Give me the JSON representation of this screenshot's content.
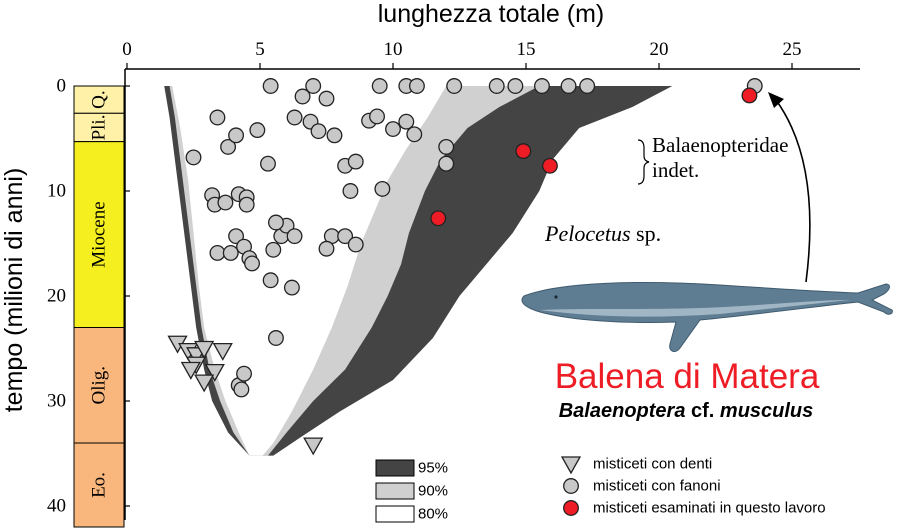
{
  "chart_data": {
    "type": "scatter",
    "title": "",
    "xlabel": "lunghezza totale (m)",
    "ylabel": "tempo (milioni di anni)",
    "xlim": [
      0,
      27
    ],
    "ylim": [
      0,
      42
    ],
    "x_ticks": [
      "0",
      "5",
      "10",
      "15",
      "20",
      "25"
    ],
    "y_ticks": [
      "0",
      "10",
      "20",
      "30",
      "40"
    ],
    "epochs": [
      {
        "label": "Q.",
        "from": 0,
        "to": 2.6,
        "color": "#fff2a8"
      },
      {
        "label": "Pli.",
        "from": 2.6,
        "to": 5.3,
        "color": "#fff2a8"
      },
      {
        "label": "Miocene",
        "from": 5.3,
        "to": 23,
        "color": "#f5ef1f"
      },
      {
        "label": "Olig.",
        "from": 23,
        "to": 34,
        "color": "#f9b77e"
      },
      {
        "label": "Eo.",
        "from": 34,
        "to": 42,
        "color": "#f9b77e"
      }
    ],
    "bands": [
      {
        "name": "95%",
        "color": "#444444",
        "left": [
          [
            1.4,
            0
          ],
          [
            1.6,
            3
          ],
          [
            1.8,
            7
          ],
          [
            2.0,
            11
          ],
          [
            2.2,
            15
          ],
          [
            2.4,
            19
          ],
          [
            2.6,
            23
          ],
          [
            2.9,
            27
          ],
          [
            3.2,
            30
          ],
          [
            3.8,
            33
          ],
          [
            4.6,
            35.2
          ]
        ],
        "right": [
          [
            20.5,
            0
          ],
          [
            19,
            2
          ],
          [
            17,
            4
          ],
          [
            16,
            7
          ],
          [
            15.5,
            10
          ],
          [
            14.5,
            14
          ],
          [
            13.5,
            17
          ],
          [
            12.5,
            20
          ],
          [
            11.5,
            24
          ],
          [
            10,
            28
          ],
          [
            8,
            31
          ],
          [
            6.5,
            33.5
          ],
          [
            5.5,
            35.2
          ]
        ]
      },
      {
        "name": "90%",
        "color": "#d0d0d0",
        "left": [
          [
            1.6,
            0
          ],
          [
            1.8,
            3
          ],
          [
            2.0,
            7
          ],
          [
            2.2,
            11
          ],
          [
            2.4,
            15
          ],
          [
            2.6,
            19
          ],
          [
            2.8,
            23
          ],
          [
            3.1,
            27
          ],
          [
            3.5,
            30
          ],
          [
            4.0,
            33
          ],
          [
            4.6,
            35.2
          ]
        ],
        "right": [
          [
            15.5,
            0
          ],
          [
            14,
            2
          ],
          [
            12.8,
            4
          ],
          [
            11.8,
            7
          ],
          [
            11.2,
            10
          ],
          [
            10.6,
            14
          ],
          [
            10.3,
            17
          ],
          [
            9.8,
            20
          ],
          [
            9.2,
            23
          ],
          [
            8.2,
            27
          ],
          [
            7,
            30
          ],
          [
            6,
            33
          ],
          [
            5.3,
            35.2
          ]
        ]
      },
      {
        "name": "80%",
        "color": "#ffffff",
        "left": [
          [
            1.7,
            0
          ],
          [
            2.0,
            4
          ],
          [
            2.3,
            9
          ],
          [
            2.5,
            14
          ],
          [
            2.7,
            19
          ],
          [
            2.9,
            23
          ],
          [
            3.3,
            27
          ],
          [
            3.7,
            30
          ],
          [
            4.2,
            33
          ],
          [
            4.6,
            35.2
          ]
        ],
        "right": [
          [
            12,
            0
          ],
          [
            11.3,
            3
          ],
          [
            10.5,
            6
          ],
          [
            9.8,
            9
          ],
          [
            9.3,
            12
          ],
          [
            8.8,
            15
          ],
          [
            8.3,
            19
          ],
          [
            7.7,
            23
          ],
          [
            7,
            27
          ],
          [
            6.2,
            31
          ],
          [
            5.5,
            34
          ],
          [
            5.1,
            35.2
          ]
        ]
      }
    ],
    "series": [
      {
        "name": "misticeti con denti",
        "marker": "triangle",
        "color": "#c8c8c8",
        "points": [
          [
            1.9,
            24.5
          ],
          [
            2.3,
            25.2
          ],
          [
            2.6,
            25.6
          ],
          [
            2.9,
            25.0
          ],
          [
            3.6,
            25.2
          ],
          [
            2.6,
            26.5
          ],
          [
            3.3,
            27.2
          ],
          [
            2.4,
            27.0
          ],
          [
            2.9,
            28.2
          ],
          [
            7.0,
            34.2
          ]
        ]
      },
      {
        "name": "misticeti con fanoni",
        "marker": "circle",
        "color": "#c8c8c8",
        "points": [
          [
            5.4,
            0
          ],
          [
            7.0,
            0
          ],
          [
            9.5,
            0
          ],
          [
            10.5,
            0
          ],
          [
            10.9,
            0
          ],
          [
            12.3,
            0
          ],
          [
            13.9,
            0
          ],
          [
            14.6,
            0
          ],
          [
            15.6,
            0
          ],
          [
            16.6,
            0
          ],
          [
            17.3,
            0
          ],
          [
            23.6,
            0
          ],
          [
            6.6,
            1.0
          ],
          [
            7.5,
            1.2
          ],
          [
            2.5,
            6.8
          ],
          [
            3.4,
            3.0
          ],
          [
            3.8,
            5.8
          ],
          [
            4.1,
            4.7
          ],
          [
            4.9,
            4.2
          ],
          [
            5.3,
            7.4
          ],
          [
            6.3,
            3.0
          ],
          [
            6.9,
            3.4
          ],
          [
            7.2,
            4.3
          ],
          [
            7.8,
            4.7
          ],
          [
            8.2,
            7.6
          ],
          [
            8.6,
            7.2
          ],
          [
            9.1,
            3.3
          ],
          [
            10.0,
            4.1
          ],
          [
            10.5,
            3.4
          ],
          [
            10.8,
            4.6
          ],
          [
            9.4,
            2.9
          ],
          [
            12.0,
            5.8
          ],
          [
            12.0,
            7.4
          ],
          [
            8.4,
            10.0
          ],
          [
            9.6,
            9.8
          ],
          [
            3.2,
            10.4
          ],
          [
            3.3,
            11.3
          ],
          [
            3.7,
            11.1
          ],
          [
            4.2,
            10.3
          ],
          [
            4.5,
            10.6
          ],
          [
            4.5,
            11.3
          ],
          [
            4.1,
            14.3
          ],
          [
            3.4,
            15.9
          ],
          [
            3.9,
            15.9
          ],
          [
            4.4,
            15.3
          ],
          [
            4.6,
            16.4
          ],
          [
            4.7,
            16.9
          ],
          [
            5.5,
            15.6
          ],
          [
            5.4,
            18.5
          ],
          [
            5.8,
            14.3
          ],
          [
            6.0,
            13.3
          ],
          [
            6.3,
            14.3
          ],
          [
            7.7,
            14.3
          ],
          [
            7.5,
            15.5
          ],
          [
            8.2,
            14.3
          ],
          [
            8.6,
            15.1
          ],
          [
            5.6,
            13.0
          ],
          [
            6.2,
            19.2
          ],
          [
            5.6,
            24.0
          ],
          [
            4.2,
            28.5
          ],
          [
            4.3,
            28.9
          ],
          [
            4.4,
            27.4
          ]
        ]
      },
      {
        "name": "misticeti esaminati in questo lavoro",
        "marker": "circle",
        "color": "#ee1c25",
        "points": [
          [
            11.7,
            12.6
          ],
          [
            14.9,
            6.2
          ],
          [
            15.9,
            7.6
          ],
          [
            23.4,
            0.9
          ]
        ]
      }
    ],
    "annotations": [
      {
        "text": "Balaenopteridae",
        "style": "serif"
      },
      {
        "text": "indet.",
        "style": "serif"
      },
      {
        "text": "Pelocetus",
        "suffix": " sp.",
        "style": "serif-italic"
      }
    ],
    "feature_title": "Balena di Matera",
    "feature_genus": "Balaenoptera",
    "feature_mid": " cf. ",
    "feature_species": "musculus",
    "legend_placement": "bottom-right",
    "grid": false
  }
}
